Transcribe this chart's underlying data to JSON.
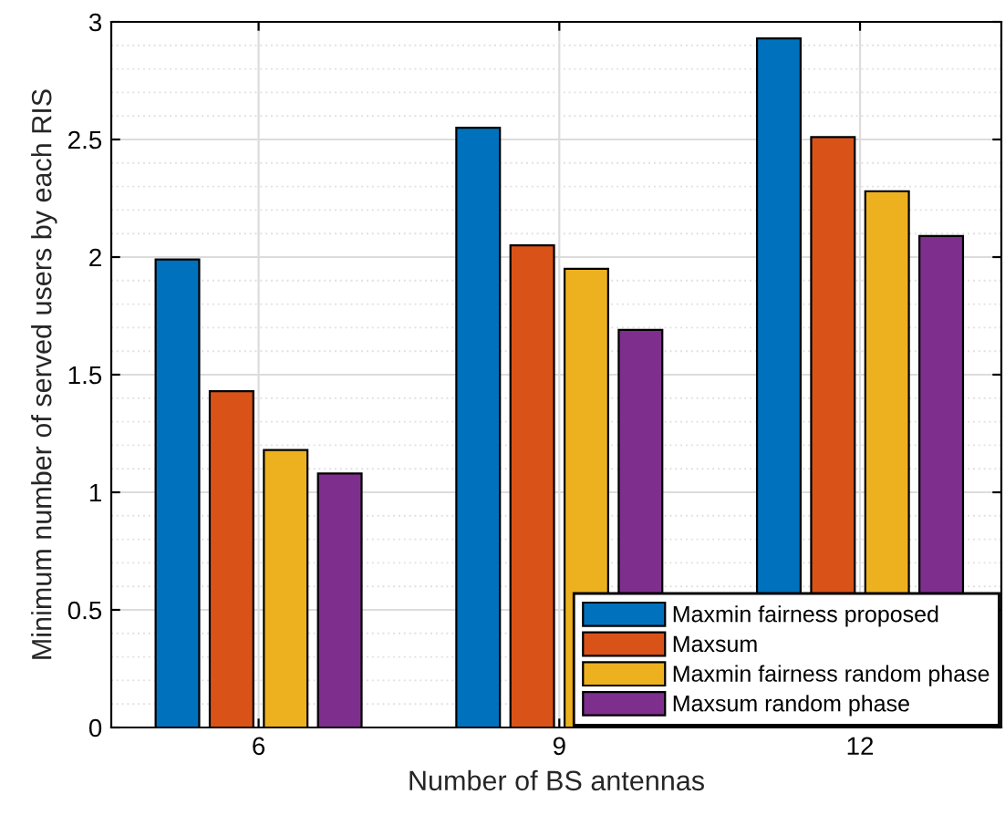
{
  "chart_data": {
    "type": "bar",
    "xlabel": "Number of BS antennas",
    "ylabel": "Minimum number of served users by each RIS",
    "categories": [
      "6",
      "9",
      "12"
    ],
    "series": [
      {
        "name": "Maxmin fairness proposed",
        "color": "#0072bd",
        "values": [
          1.99,
          2.55,
          2.93
        ]
      },
      {
        "name": "Maxsum",
        "color": "#d95319",
        "values": [
          1.43,
          2.05,
          2.51
        ]
      },
      {
        "name": "Maxmin fairness random phase",
        "color": "#edb120",
        "values": [
          1.18,
          1.95,
          2.28
        ]
      },
      {
        "name": "Maxsum random phase",
        "color": "#7e2f8e",
        "values": [
          1.08,
          1.69,
          2.09
        ]
      }
    ],
    "ylim": [
      0,
      3
    ],
    "yticks": [
      0,
      0.5,
      1,
      1.5,
      2,
      2.5,
      3
    ],
    "grid": true,
    "legend": "bottom right"
  }
}
